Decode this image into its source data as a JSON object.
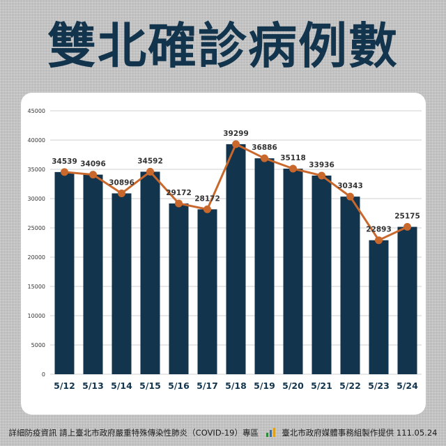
{
  "title": "雙北確診病例數",
  "footer": {
    "left": "詳細防疫資訊 請上臺北市政府嚴重特殊傳染性肺炎（COVID-19）專區",
    "right": "臺北市政府媒體事務組製作提供 111.05.24"
  },
  "colors": {
    "bar": "#13344d",
    "line": "#c8682d",
    "grid": "#cfcfcf",
    "axis_text": "#333333",
    "title": "#13344d"
  },
  "chart_data": {
    "type": "bar",
    "categories": [
      "5/12",
      "5/13",
      "5/14",
      "5/15",
      "5/16",
      "5/17",
      "5/18",
      "5/19",
      "5/20",
      "5/21",
      "5/22",
      "5/23",
      "5/24"
    ],
    "values": [
      34539,
      34096,
      30896,
      34592,
      29172,
      28172,
      39299,
      36886,
      35118,
      33936,
      30343,
      22893,
      25175
    ],
    "overlay": "line",
    "ylim": [
      0,
      45000
    ],
    "yticks": [
      "0",
      "5000",
      "10000",
      "15000",
      "20000",
      "25000",
      "30000",
      "35000",
      "40000",
      "45000"
    ],
    "grid": true,
    "title": "",
    "xlabel": "",
    "ylabel": ""
  }
}
